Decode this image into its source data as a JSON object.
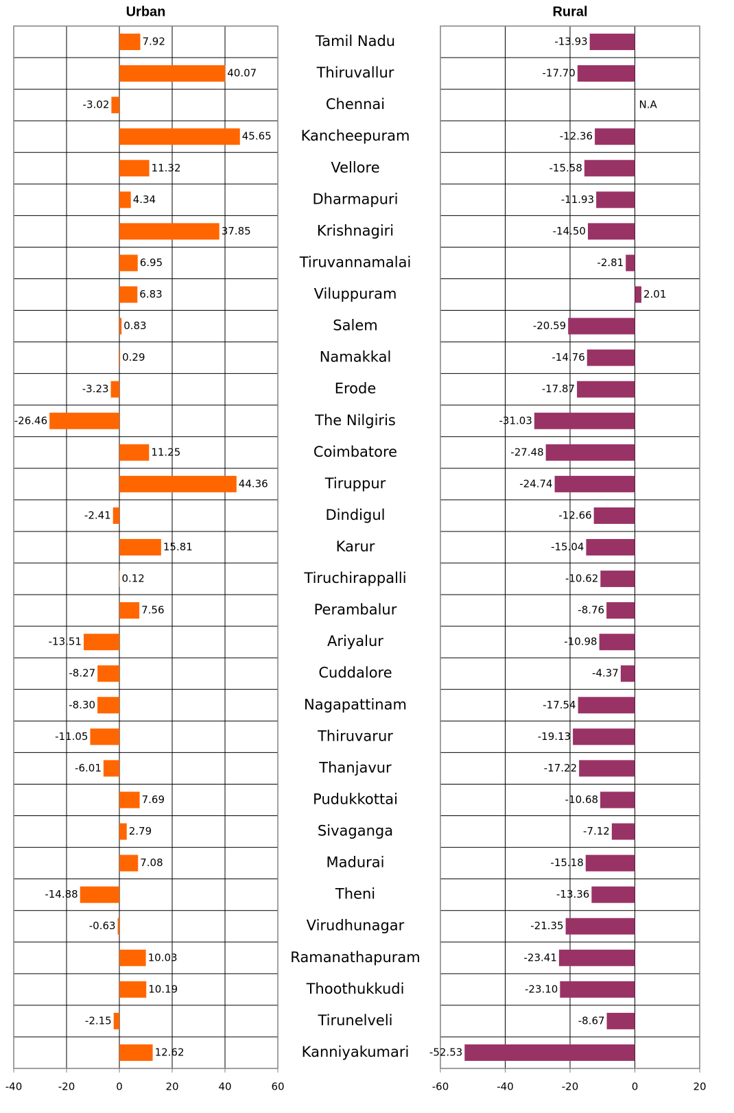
{
  "chart_data": [
    {
      "type": "bar",
      "orientation": "horizontal",
      "title": "Urban",
      "color": "#ff6600",
      "categories": [
        "Tamil Nadu",
        "Thiruvallur",
        "Chennai",
        "Kancheepuram",
        "Vellore",
        "Dharmapuri",
        "Krishnagiri",
        "Tiruvannamalai",
        "Viluppuram",
        "Salem",
        "Namakkal",
        "Erode",
        "The Nilgiris",
        "Coimbatore",
        "Tiruppur",
        "Dindigul",
        "Karur",
        "Tiruchirappalli",
        "Perambalur",
        "Ariyalur",
        "Cuddalore",
        "Nagapattinam",
        "Thiruvarur",
        "Thanjavur",
        "Pudukkottai",
        "Sivaganga",
        "Madurai",
        "Theni",
        "Virudhunagar",
        "Ramanathapuram",
        "Thoothukkudi",
        "Tirunelveli",
        "Kanniyakumari"
      ],
      "values": [
        7.92,
        40.07,
        -3.02,
        45.65,
        11.32,
        4.34,
        37.85,
        6.95,
        6.83,
        0.83,
        0.29,
        -3.23,
        -26.46,
        11.25,
        44.36,
        -2.41,
        15.81,
        0.12,
        7.56,
        -13.51,
        -8.27,
        -8.3,
        -11.05,
        -6.01,
        7.69,
        2.79,
        7.08,
        -14.88,
        -0.63,
        10.03,
        10.19,
        -2.15,
        12.62
      ],
      "value_labels": [
        "7.92",
        "40.07",
        "-3.02",
        "45.65",
        "11.32",
        "4.34",
        "37.85",
        "6.95",
        "6.83",
        "0.83",
        "0.29",
        "-3.23",
        "-26.46",
        "11.25",
        "44.36",
        "-2.41",
        "15.81",
        "0.12",
        "7.56",
        "-13.51",
        "-8.27",
        "-8.30",
        "-11.05",
        "-6.01",
        "7.69",
        "2.79",
        "7.08",
        "-14.88",
        "-0.63",
        "10.03",
        "10.19",
        "-2.15",
        "12.62"
      ],
      "xlim": [
        -40,
        60
      ],
      "xticks": [
        -40,
        -20,
        0,
        20,
        40,
        60
      ],
      "grid": true
    },
    {
      "type": "bar",
      "orientation": "horizontal",
      "title": "Rural",
      "color": "#993366",
      "values": [
        -13.93,
        -17.7,
        null,
        -12.36,
        -15.58,
        -11.93,
        -14.5,
        -2.81,
        2.01,
        -20.59,
        -14.76,
        -17.87,
        -31.03,
        -27.48,
        -24.74,
        -12.66,
        -15.04,
        -10.62,
        -8.76,
        -10.98,
        -4.37,
        -17.54,
        -19.13,
        -17.22,
        -10.68,
        -7.12,
        -15.18,
        -13.36,
        -21.35,
        -23.41,
        -23.1,
        -8.67,
        -52.53
      ],
      "value_labels": [
        "-13.93",
        "-17.70",
        "N.A",
        "-12.36",
        "-15.58",
        "-11.93",
        "-14.50",
        "-2.81",
        "2.01",
        "-20.59",
        "-14.76",
        "-17.87",
        "-31.03",
        "-27.48",
        "-24.74",
        "-12.66",
        "-15.04",
        "-10.62",
        "-8.76",
        "-10.98",
        "-4.37",
        "-17.54",
        "-19.13",
        "-17.22",
        "-10.68",
        "-7.12",
        "-15.18",
        "-13.36",
        "-21.35",
        "-23.41",
        "-23.10",
        "-8.67",
        "-52.53"
      ],
      "xlim": [
        -60,
        20
      ],
      "xticks": [
        -60,
        -40,
        -20,
        0,
        20
      ],
      "grid": true
    }
  ]
}
